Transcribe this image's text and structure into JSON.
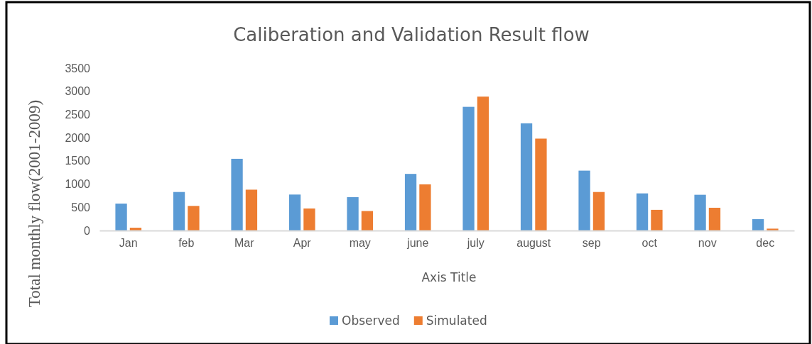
{
  "chart_data": {
    "type": "bar",
    "title": "Caliberation and Validation  Result  flow",
    "xlabel": "Axis Title",
    "ylabel": "Total monthly flow(2001-2009)",
    "categories": [
      "Jan",
      "feb",
      "Mar",
      "Apr",
      "may",
      "june",
      "july",
      "august",
      "sep",
      "oct",
      "nov",
      "dec"
    ],
    "series": [
      {
        "name": "Observed",
        "color": "#5b9bd5",
        "values": [
          580,
          830,
          1545,
          775,
          720,
          1220,
          2665,
          2310,
          1290,
          800,
          770,
          245
        ]
      },
      {
        "name": "Simulated",
        "color": "#ed7d31",
        "values": [
          60,
          530,
          880,
          475,
          420,
          995,
          2885,
          1980,
          830,
          445,
          490,
          40
        ]
      }
    ],
    "ylim": [
      0,
      3500
    ],
    "yticks": [
      0,
      500,
      1000,
      1500,
      2000,
      2500,
      3000,
      3500
    ],
    "grid": false,
    "legend": "bottom"
  }
}
